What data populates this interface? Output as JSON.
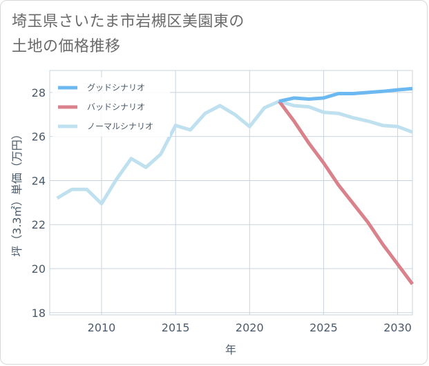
{
  "header": {
    "title_line1": "埼玉県さいたま市岩槻区美園東の",
    "title_line2": "土地の価格推移"
  },
  "colors": {
    "good": "#6cb8f0",
    "bad": "#d9828c",
    "normal": "#bfe0ef",
    "grid": "#c9d3de",
    "axis_text": "#4a5a6a"
  },
  "chart_data": {
    "type": "line",
    "title": "埼玉県さいたま市岩槻区美園東の土地の価格推移",
    "xlabel": "年",
    "ylabel": "坪（3.3㎡）単価（万円）",
    "xlim": [
      2006.5,
      2031
    ],
    "ylim": [
      17.9,
      29
    ],
    "x_ticks": [
      2010,
      2015,
      2020,
      2025,
      2030
    ],
    "y_ticks": [
      18,
      20,
      22,
      24,
      26,
      28
    ],
    "x_tick_labels": [
      "2010",
      "2015",
      "2020",
      "2025",
      "2030"
    ],
    "y_tick_labels": [
      "18",
      "20",
      "22",
      "24",
      "26",
      "28"
    ],
    "grid": true,
    "legend_position": "top-left",
    "series": [
      {
        "key": "good",
        "name": "グッドシナリオ",
        "color": "#6cb8f0",
        "x": [
          2022,
          2023,
          2024,
          2025,
          2026,
          2027,
          2028,
          2029,
          2030,
          2031
        ],
        "y": [
          27.6,
          27.75,
          27.7,
          27.75,
          27.95,
          27.95,
          28.0,
          28.05,
          28.12,
          28.18
        ]
      },
      {
        "key": "bad",
        "name": "バッドシナリオ",
        "color": "#d9828c",
        "x": [
          2022,
          2023,
          2024,
          2025,
          2026,
          2027,
          2028,
          2029,
          2030,
          2031
        ],
        "y": [
          27.6,
          26.7,
          25.7,
          24.8,
          23.8,
          22.95,
          22.1,
          21.1,
          20.2,
          19.3
        ]
      },
      {
        "key": "normal",
        "name": "ノーマルシナリオ",
        "color": "#bfe0ef",
        "x": [
          2007,
          2008,
          2009,
          2010,
          2011,
          2012,
          2013,
          2014,
          2015,
          2016,
          2017,
          2018,
          2019,
          2020,
          2021,
          2022,
          2023,
          2024,
          2025,
          2026,
          2027,
          2028,
          2029,
          2030,
          2031
        ],
        "y": [
          23.2,
          23.6,
          23.6,
          22.95,
          24.05,
          25.0,
          24.6,
          25.2,
          26.5,
          26.3,
          27.05,
          27.4,
          27.0,
          26.45,
          27.3,
          27.6,
          27.4,
          27.35,
          27.1,
          27.05,
          26.85,
          26.7,
          26.5,
          26.45,
          26.2
        ]
      }
    ]
  }
}
